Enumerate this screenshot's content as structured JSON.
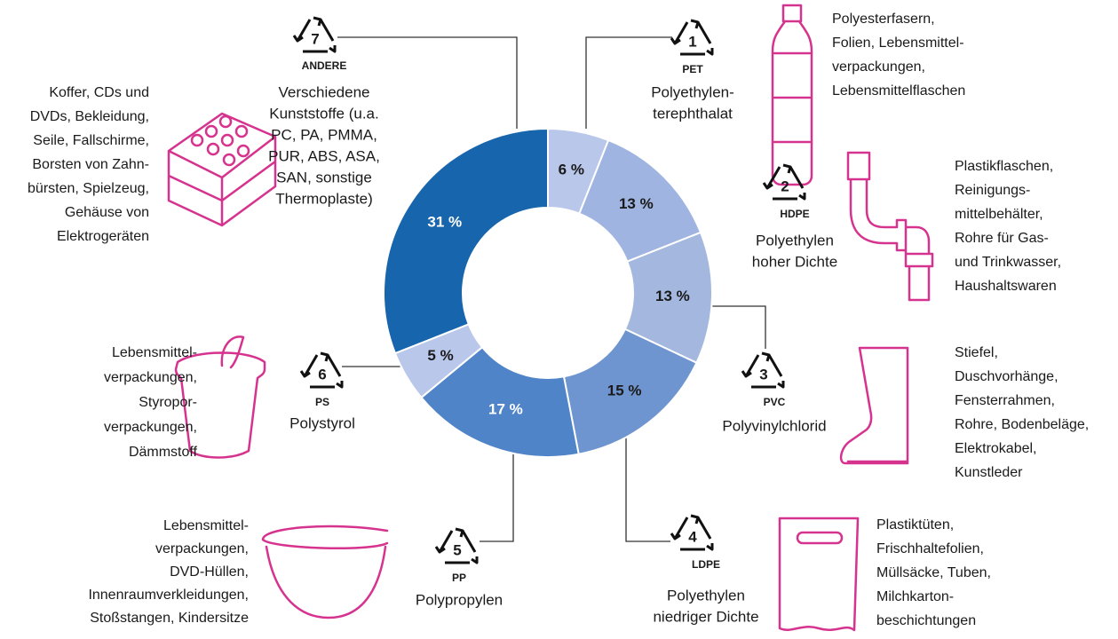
{
  "chart_data": {
    "type": "pie",
    "donut": true,
    "categories": [
      "PET",
      "HDPE",
      "PVC",
      "LDPE",
      "PP",
      "PS",
      "ANDERE"
    ],
    "codes": [
      "1",
      "2",
      "3",
      "4",
      "5",
      "6",
      "7"
    ],
    "values": [
      6,
      13,
      13,
      15,
      17,
      5,
      31
    ],
    "value_labels": [
      "6 %",
      "13 %",
      "13 %",
      "15 %",
      "17 %",
      "5 %",
      "31 %"
    ],
    "colors": [
      "#b9c7ea",
      "#9fb4e0",
      "#a3b7df",
      "#6f95d0",
      "#4f84c8",
      "#b9c7ea",
      "#1765ac"
    ],
    "names": [
      [
        "Polyethylen-",
        "terephthalat"
      ],
      [
        "Polyethylen",
        "hoher Dichte"
      ],
      [
        "Polyvinylchlorid"
      ],
      [
        "Polyethylen",
        "niedriger Dichte"
      ],
      [
        "Polypropylen"
      ],
      [
        "Polystyrol"
      ],
      [
        "Verschiedene",
        "Kunststoffe (u.a.",
        "PC, PA, PMMA,",
        "PUR, ABS, ASA,",
        "SAN, sonstige",
        "Thermoplaste)"
      ]
    ],
    "uses": [
      [
        "Polyesterfasern,",
        "Folien, Lebensmittel-",
        "verpackungen,",
        "Lebensmittelflaschen"
      ],
      [
        "Plastikflaschen,",
        "Reinigungs-",
        "mittelbehälter,",
        "Rohre für Gas-",
        "und Trinkwasser,",
        "Haushaltswaren"
      ],
      [
        "Stiefel,",
        "Duschvorhänge,",
        "Fensterrahmen,",
        "Rohre, Bodenbeläge,",
        "Elektrokabel,",
        "Kunstleder"
      ],
      [
        "Plastiktüten,",
        "Frischhaltefolien,",
        "Müllsäcke, Tuben,",
        "Milchkarton-",
        "beschichtungen"
      ],
      [
        "Lebensmittel-",
        "verpackungen,",
        "DVD-Hüllen,",
        "Innenraumverkleidungen,",
        "Stoßstangen, Kindersitze"
      ],
      [
        "Lebensmittel-",
        "verpackungen,",
        "Styropor-",
        "verpackungen,",
        "Dämmstoff"
      ],
      [
        "Koffer, CDs und",
        "DVDs, Bekleidung,",
        "Seile, Fallschirme,",
        "Borsten von Zahn-",
        "bürsten, Spielzeug,",
        "Gehäuse von",
        "Elektrogeräten"
      ]
    ]
  }
}
